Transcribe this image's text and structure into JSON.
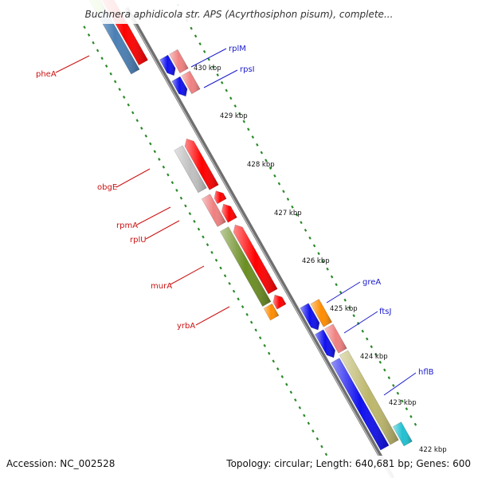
{
  "title": "Buchnera aphidicola str. APS (Acyrthosiphon pisum), complete...",
  "accession": "Accession: NC_002528",
  "topology": "Topology: circular; Length: 640,681 bp; Genes: 600",
  "colors": {
    "backbone": "#808080",
    "ticks": "#2a8a2a",
    "label_forward": "#1a1acc",
    "label_reverse": "#cc1111"
  },
  "ticks": [
    {
      "label": "430 kbp"
    },
    {
      "label": "429 kbp"
    },
    {
      "label": "428 kbp"
    },
    {
      "label": "427 kbp"
    },
    {
      "label": "426 kbp"
    },
    {
      "label": "425 kbp"
    },
    {
      "label": "424 kbp"
    },
    {
      "label": "423 kbp"
    },
    {
      "label": "422 kbp"
    }
  ],
  "gene_labels": [
    {
      "name": "pheA",
      "strand": "reverse"
    },
    {
      "name": "obgE",
      "strand": "reverse"
    },
    {
      "name": "rpmA",
      "strand": "reverse"
    },
    {
      "name": "rplU",
      "strand": "reverse"
    },
    {
      "name": "murA",
      "strand": "reverse"
    },
    {
      "name": "yrbA",
      "strand": "reverse"
    },
    {
      "name": "rplM",
      "strand": "forward"
    },
    {
      "name": "rpsI",
      "strand": "forward"
    },
    {
      "name": "greA",
      "strand": "forward"
    },
    {
      "name": "ftsJ",
      "strand": "forward"
    },
    {
      "name": "hflB",
      "strand": "forward"
    }
  ]
}
